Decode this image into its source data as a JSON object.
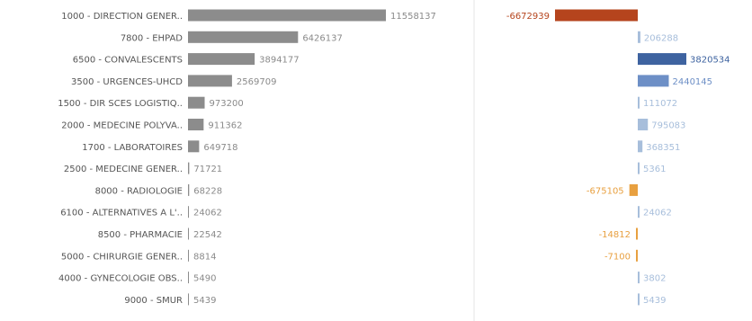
{
  "chart_data": [
    {
      "type": "bar",
      "orientation": "horizontal",
      "categories": [
        "1000 - DIRECTION GENER..",
        "7800 - EHPAD",
        "6500 - CONVALESCENTS",
        "3500 - URGENCES-UHCD",
        "1500 - DIR SCES LOGISTIQ..",
        "2000 - MEDECINE POLYVA..",
        "1700 - LABORATOIRES",
        "2500 - MEDECINE GENER..",
        "8000 - RADIOLOGIE",
        "6100 - ALTERNATIVES A L'..",
        "8500 - PHARMACIE",
        "5000 - CHIRURGIE GENER..",
        "4000 - GYNECOLOGIE OBS..",
        "9000 - SMUR"
      ],
      "values": [
        11558137,
        6426137,
        3894177,
        2569709,
        973200,
        911362,
        649718,
        71721,
        68228,
        24062,
        22542,
        8814,
        5490,
        5439
      ],
      "value_labels": [
        "11558137",
        "6426137",
        "3894177",
        "2569709",
        "973200",
        "911362",
        "649718",
        "71721",
        "68228",
        "24062",
        "22542",
        "8814",
        "5490",
        "5439"
      ],
      "color": "#8c8c8c"
    },
    {
      "type": "bar",
      "orientation": "horizontal",
      "diverging": true,
      "values": [
        -6672939,
        206288,
        3820534,
        2440145,
        111072,
        795083,
        368351,
        5361,
        -675105,
        24062,
        -14812,
        -7100,
        3802,
        5439
      ],
      "value_labels": [
        "-6672939",
        "206288",
        "3820534",
        "2440145",
        "111072",
        "795083",
        "368351",
        "5361",
        "-675105",
        "24062",
        "-14812",
        "-7100",
        "3802",
        "5439"
      ],
      "colors": {
        "negative_large": "#b5441d",
        "negative_small": "#e8a040",
        "positive_large": "#3e63a0",
        "positive_medium": "#6d8fc6",
        "positive_small": "#a7bedb",
        "divider": "#e6e6e6"
      }
    }
  ]
}
